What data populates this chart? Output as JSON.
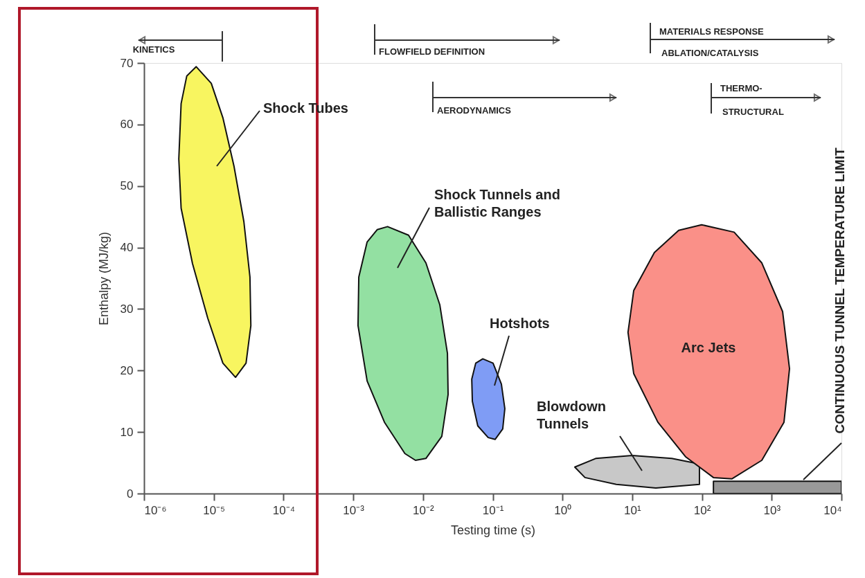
{
  "chart_data": {
    "type": "area",
    "xlabel": "Testing time (s)",
    "ylabel": "Enthalpy (MJ/kg)",
    "log": "x",
    "xlim": [
      1e-06,
      10000
    ],
    "ylim": [
      0,
      70
    ],
    "xticks": [
      {
        "value": 1e-06,
        "label": "10⁻⁶"
      },
      {
        "value": 1e-05,
        "label": "10⁻⁵"
      },
      {
        "value": 0.0001,
        "label": "10⁻⁴"
      },
      {
        "value": 0.001,
        "label": "10⁻³"
      },
      {
        "value": 0.01,
        "label": "10⁻²"
      },
      {
        "value": 0.1,
        "label": "10⁻¹"
      },
      {
        "value": 1,
        "label": "10⁰"
      },
      {
        "value": 10,
        "label": "10¹"
      },
      {
        "value": 100,
        "label": "10²"
      },
      {
        "value": 1000,
        "label": "10³"
      },
      {
        "value": 10000,
        "label": "10⁴"
      }
    ],
    "yticks": [
      0,
      10,
      20,
      30,
      40,
      50,
      60,
      70
    ],
    "grid": false,
    "marker": "none",
    "line_style": "solid",
    "series": [
      {
        "name": "Shock Tubes",
        "color": "#f8f560",
        "x": [
          5.6e-06,
          9.2e-06,
          1.35e-05,
          1.95e-05,
          2.7e-05,
          3.3e-05,
          3.4e-05,
          2.9e-05,
          2.05e-05,
          1.35e-05,
          8.2e-06,
          4.95e-06,
          3.4e-06,
          3.15e-06,
          3.4e-06,
          4.1e-06
        ],
        "values": [
          69.4,
          66.7,
          61.1,
          53.2,
          44.2,
          35.2,
          27.3,
          21.2,
          18.9,
          21.2,
          28.5,
          37.4,
          46.4,
          54.4,
          63.4,
          67.9
        ]
      },
      {
        "name": "Shock Tunnels and\nBallistic Ranges",
        "color": "#93e0a2",
        "x": [
          0.0031,
          0.0062,
          0.011,
          0.0174,
          0.0224,
          0.0229,
          0.0186,
          0.011,
          0.0078,
          0.0055,
          0.0028,
          0.00158,
          0.00117,
          0.0012,
          0.00158,
          0.0022
        ],
        "values": [
          43.4,
          42.0,
          37.5,
          30.7,
          22.8,
          16.1,
          9.3,
          5.7,
          5.4,
          6.5,
          11.6,
          18.3,
          27.3,
          35.2,
          40.9,
          42.9
        ]
      },
      {
        "name": "Hotshots",
        "color": "#7f9cf5",
        "x": [
          0.072,
          0.101,
          0.133,
          0.149,
          0.139,
          0.108,
          0.086,
          0.061,
          0.051,
          0.05,
          0.057
        ],
        "values": [
          21.9,
          21.2,
          17.8,
          13.8,
          10.5,
          8.8,
          9.1,
          11.0,
          15.0,
          18.6,
          21.2
        ]
      },
      {
        "name": "Blowdown\nTunnels",
        "color": "#c8c8c8",
        "x": [
          1.5,
          2.99,
          10.0,
          36.9,
          92,
          null,
          92,
          21.8,
          5.9,
          2.1
        ],
        "values": [
          4.3,
          5.7,
          6.2,
          5.7,
          4.8,
          null,
          1.5,
          0.9,
          1.5,
          2.6
        ]
      },
      {
        "name": "Arc Jets",
        "color": "#fa9088",
        "x": [
          98.6,
          289,
          721,
          1432,
          1800,
          1500,
          721,
          270,
          146,
          58,
          23.3,
          10.5,
          8.7,
          10.5,
          20.8,
          46.4
        ],
        "values": [
          43.7,
          42.5,
          37.5,
          29.6,
          20.3,
          11.6,
          5.4,
          2.4,
          2.6,
          6.0,
          11.6,
          19.5,
          26.2,
          33.0,
          39.2,
          42.8
        ]
      },
      {
        "name": "CONTINUOUS TUNNEL TEMPERATURE LIMIT",
        "color": "#999999",
        "x": [
          146,
          146,
          10000,
          10000
        ],
        "values": [
          0,
          2.0,
          2.0,
          0
        ]
      }
    ],
    "annotations": [
      "KINETICS",
      "FLOWFIELD DEFINITION",
      "AERODYNAMICS",
      "MATERIALS RESPONSE",
      "ABLATION/CATALYSIS",
      "THERMO-",
      "STRUCTURAL"
    ]
  }
}
